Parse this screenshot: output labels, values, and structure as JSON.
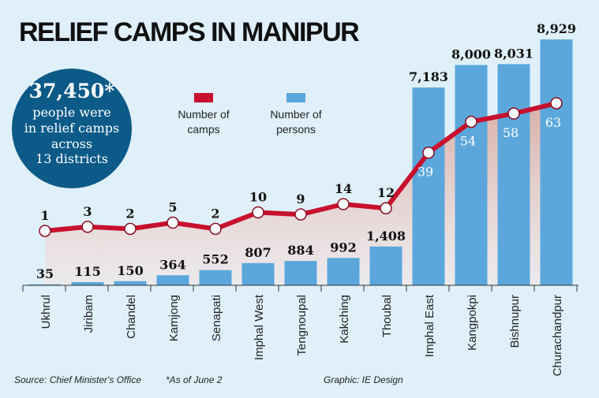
{
  "chart_data": {
    "type": "bar",
    "title": "RELIEF CAMPS IN MANIPUR",
    "categories": [
      "Ukhrul",
      "Jiribam",
      "Chandel",
      "Kamjong",
      "Senapati",
      "Imphal West",
      "Tengnoupal",
      "Kakching",
      "Thoubal",
      "Imphal East",
      "Kangpokpi",
      "Bishnupur",
      "Churachandpur"
    ],
    "series": [
      {
        "name": "Number of persons",
        "type": "bar",
        "color": "#5ba7dc",
        "values": [
          35,
          115,
          150,
          364,
          552,
          807,
          884,
          992,
          1408,
          7183,
          8000,
          8031,
          8929
        ],
        "labels": [
          "35",
          "115",
          "150",
          "364",
          "552",
          "807",
          "884",
          "992",
          "1,408",
          "7,183",
          "8,000",
          "8,031",
          "8,929"
        ]
      },
      {
        "name": "Number of camps",
        "type": "line",
        "color": "#c8102e",
        "values": [
          1,
          3,
          2,
          5,
          2,
          10,
          9,
          14,
          12,
          39,
          54,
          58,
          63
        ]
      }
    ],
    "legend": {
      "placement": "top-center",
      "camps_line1": "Number of",
      "camps_line2": "camps",
      "persons_line1": "Number of",
      "persons_line2": "persons"
    },
    "grid": false
  },
  "callout": {
    "number": "37,450*",
    "line1": "people were",
    "line2": "in relief camps",
    "line3": "across",
    "line4": "13 districts",
    "color": "#0b5a88"
  },
  "footer": {
    "source": "Source: Chief Minister's Office",
    "note": "*As of June 2",
    "credit": "Graphic: IE Design"
  }
}
